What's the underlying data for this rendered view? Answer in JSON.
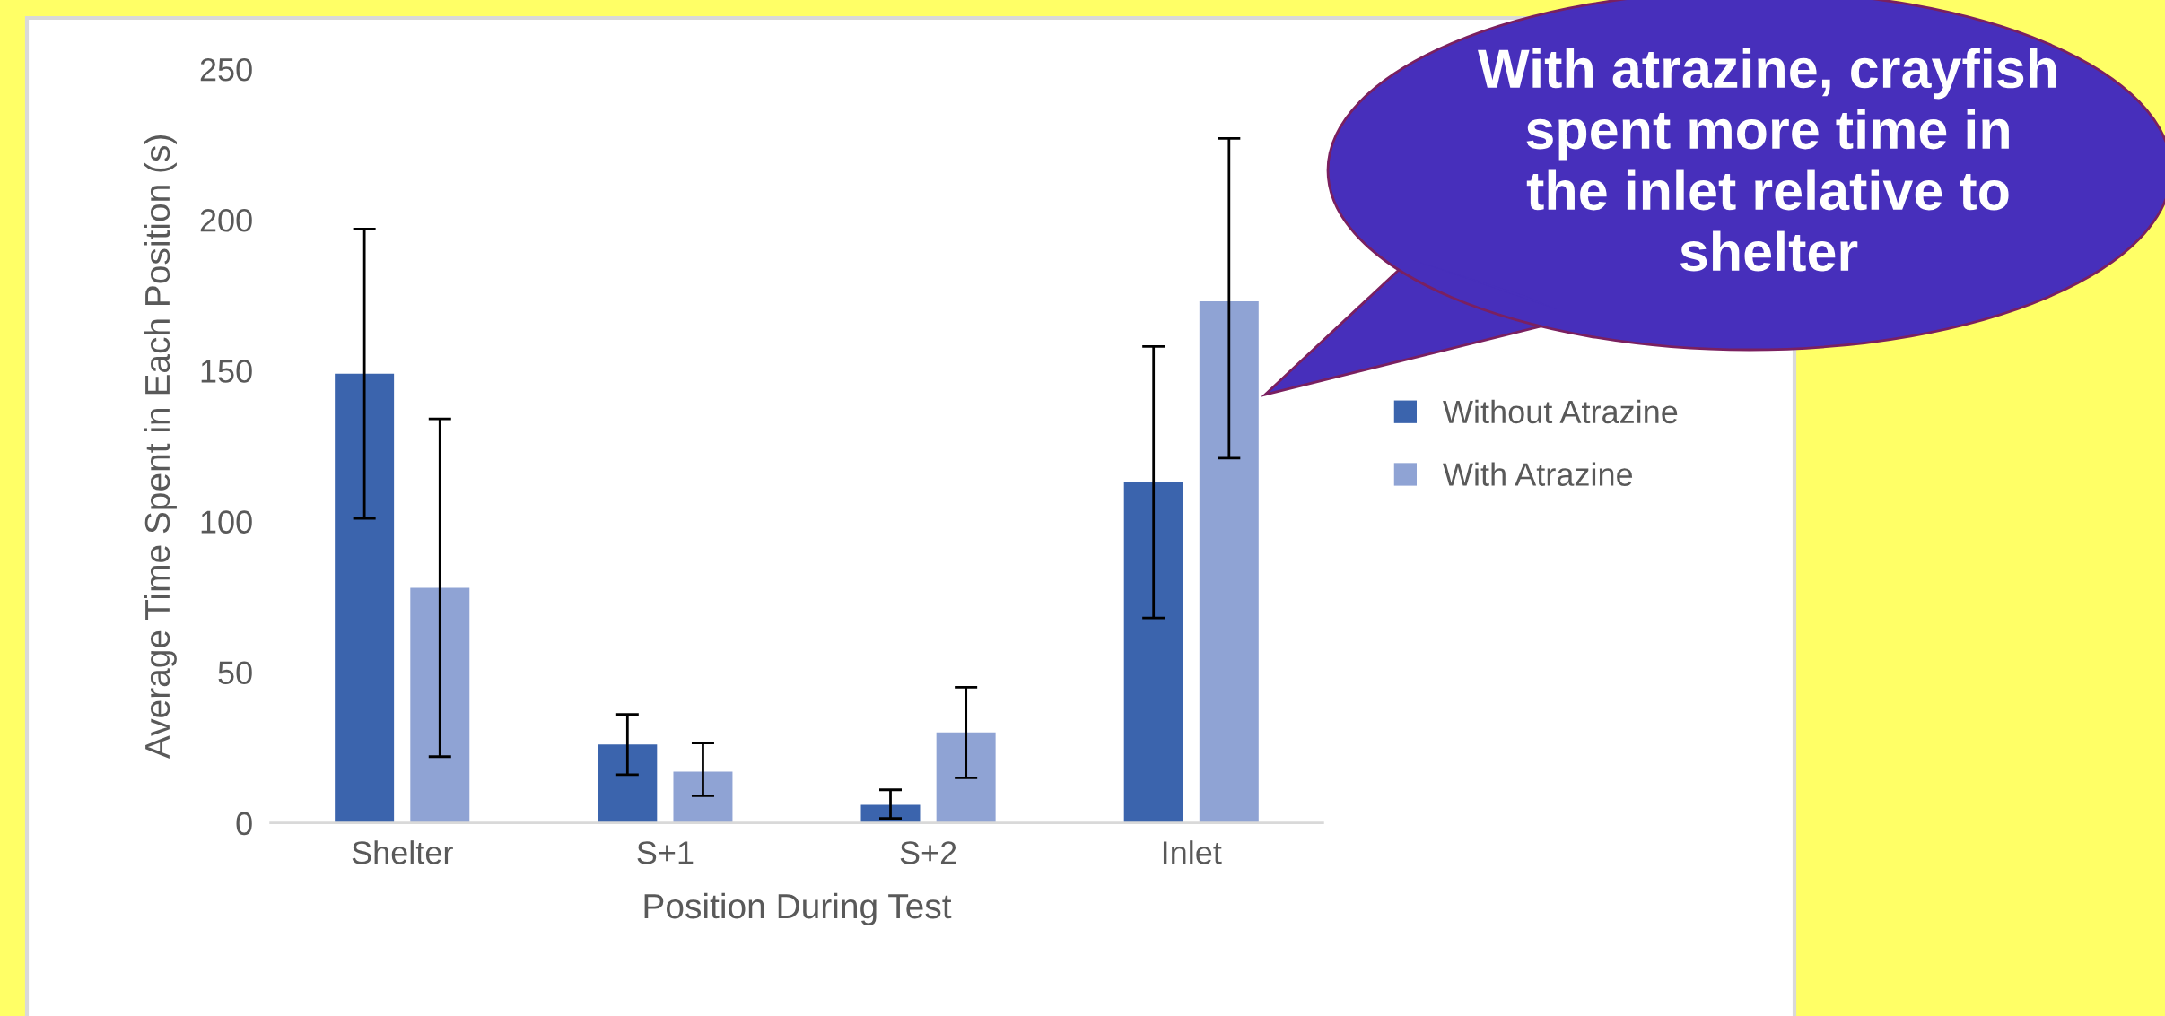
{
  "chart_data": {
    "type": "bar",
    "xlabel": "Position During Test",
    "ylabel": "Average Time Spent in Each Position (s)",
    "categories": [
      "Shelter",
      "S+1",
      "S+2",
      "Inlet"
    ],
    "series": [
      {
        "name": "Without Atrazine",
        "color": "#3b64ad",
        "values": [
          149,
          26,
          6,
          113
        ],
        "errors": [
          [
            101,
            197
          ],
          [
            16,
            36
          ],
          [
            1.5,
            11
          ],
          [
            68,
            158
          ]
        ]
      },
      {
        "name": "With Atrazine",
        "color": "#8fa3d4",
        "values": [
          78,
          17,
          30,
          173
        ],
        "errors": [
          [
            22,
            134
          ],
          [
            9,
            26.5
          ],
          [
            15,
            45
          ],
          [
            121,
            227
          ]
        ]
      }
    ],
    "ylim": [
      0,
      250
    ],
    "yticks": [
      0,
      50,
      100,
      150,
      200,
      250
    ],
    "grid": false,
    "legend": "right",
    "annotations": [
      "With atrazine, crayfish\nspent more time in\nthe inlet relative to\nshelter"
    ]
  }
}
